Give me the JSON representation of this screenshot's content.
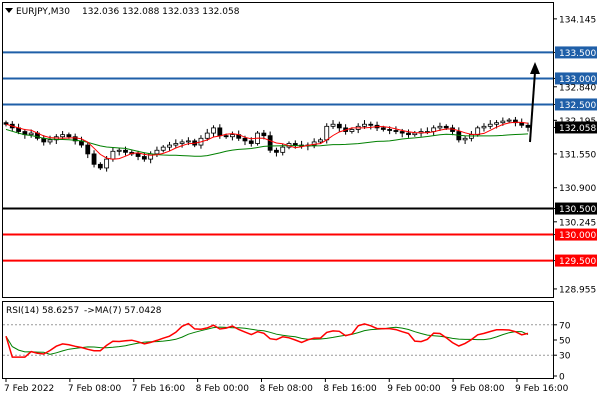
{
  "header": {
    "symbol_timeframe": "EURJPY,M30",
    "ohlc": "132.036 132.088 132.033 132.058"
  },
  "rsi_header": {
    "label": "RSI(14) 58.6257",
    "ma_label": "->MA(7) 57.0428"
  },
  "colors": {
    "background": "#ffffff",
    "candle": "#000000",
    "ma_fast": "#ff0000",
    "ma_slow": "#008000",
    "level_blue": "#1f5fa8",
    "level_black": "#000000",
    "level_red": "#ff0000",
    "arrow": "#000000"
  },
  "icons": {
    "dropdown": "triangle-down-icon"
  },
  "chart_data": [
    {
      "type": "candlestick",
      "name": "price",
      "ylim": [
        128.8,
        134.45
      ],
      "y_ticks": [
        "134.145",
        "133.500",
        "133.000",
        "132.840",
        "132.500",
        "132.195",
        "132.058",
        "131.550",
        "130.900",
        "130.500",
        "130.245",
        "130.000",
        "129.500",
        "128.955"
      ],
      "current_price": "132.058",
      "levels": [
        {
          "value": 133.5,
          "label": "133.500",
          "color": "#1f5fa8"
        },
        {
          "value": 133.0,
          "label": "133.000",
          "color": "#1f5fa8"
        },
        {
          "value": 132.5,
          "label": "132.500",
          "color": "#1f5fa8"
        },
        {
          "value": 130.5,
          "label": "130.500",
          "color": "#000000"
        },
        {
          "value": 130.0,
          "label": "130.000",
          "color": "#ff0000"
        },
        {
          "value": 129.5,
          "label": "129.500",
          "color": "#ff0000"
        }
      ],
      "closes": [
        132.12,
        132.05,
        131.98,
        131.92,
        131.95,
        131.85,
        131.78,
        131.82,
        131.88,
        131.92,
        131.88,
        131.8,
        131.72,
        131.55,
        131.35,
        131.28,
        131.45,
        131.6,
        131.62,
        131.58,
        131.55,
        131.5,
        131.45,
        131.55,
        131.62,
        131.68,
        131.72,
        131.75,
        131.78,
        131.8,
        131.72,
        131.85,
        131.95,
        132.05,
        131.9,
        131.88,
        131.92,
        131.85,
        131.8,
        131.75,
        131.95,
        131.9,
        131.62,
        131.58,
        131.68,
        131.75,
        131.72,
        131.7,
        131.72,
        131.78,
        131.82,
        132.08,
        132.12,
        132.05,
        131.98,
        132.02,
        132.08,
        132.12,
        132.1,
        132.05,
        132.02,
        132.0,
        131.98,
        131.95,
        131.92,
        131.95,
        131.98,
        131.98,
        132.05,
        132.08,
        132.05,
        131.98,
        131.82,
        131.85,
        131.92,
        132.05,
        132.08,
        132.12,
        132.15,
        132.18,
        132.2,
        132.15,
        132.1,
        132.06
      ]
    },
    {
      "type": "line",
      "name": "rsi",
      "ylim": [
        0,
        100
      ],
      "y_ticks": [
        "70",
        "50",
        "30",
        "0"
      ],
      "levels": [
        70,
        30
      ],
      "rsi": 58.6257,
      "rsi_ma": 57.0428
    }
  ],
  "x_axis_labels": [
    "7 Feb 2022",
    "7 Feb 08:00",
    "7 Feb 16:00",
    "8 Feb 00:00",
    "8 Feb 08:00",
    "8 Feb 16:00",
    "9 Feb 00:00",
    "9 Feb 08:00",
    "9 Feb 16:00"
  ]
}
